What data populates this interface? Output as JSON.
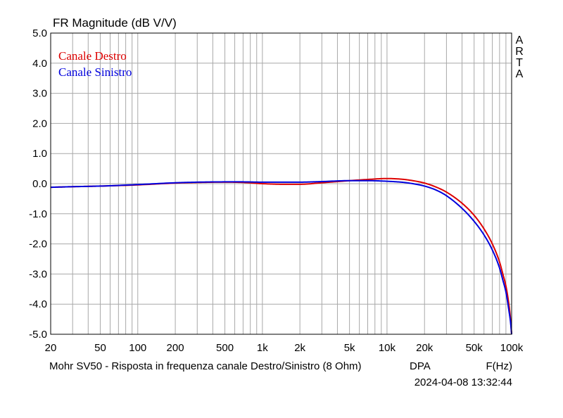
{
  "chart_data": {
    "type": "line",
    "title": "FR Magnitude (dB V/V)",
    "xlabel": "F(Hz)",
    "x_scale": "log",
    "xlim": [
      20,
      100000
    ],
    "ylim": [
      -5.0,
      5.0
    ],
    "grid": true,
    "legend_position": "top-left",
    "x_ticks": [
      {
        "value": 20,
        "label": "20"
      },
      {
        "value": 50,
        "label": "50"
      },
      {
        "value": 100,
        "label": "100"
      },
      {
        "value": 200,
        "label": "200"
      },
      {
        "value": 500,
        "label": "500"
      },
      {
        "value": 1000,
        "label": "1k"
      },
      {
        "value": 2000,
        "label": "2k"
      },
      {
        "value": 5000,
        "label": "5k"
      },
      {
        "value": 10000,
        "label": "10k"
      },
      {
        "value": 20000,
        "label": "20k"
      },
      {
        "value": 50000,
        "label": "50k"
      },
      {
        "value": 100000,
        "label": "100k"
      }
    ],
    "y_ticks": [
      {
        "value": 5,
        "label": "5.0"
      },
      {
        "value": 4,
        "label": "4.0"
      },
      {
        "value": 3,
        "label": "3.0"
      },
      {
        "value": 2,
        "label": "2.0"
      },
      {
        "value": 1,
        "label": "1.0"
      },
      {
        "value": 0,
        "label": "0.0"
      },
      {
        "value": -1,
        "label": "-1.0"
      },
      {
        "value": -2,
        "label": "-2.0"
      },
      {
        "value": -3,
        "label": "-3.0"
      },
      {
        "value": -4,
        "label": "-4.0"
      },
      {
        "value": -5,
        "label": "-5.0"
      }
    ],
    "series": [
      {
        "name": "Canale Destro",
        "color": "#dd0000",
        "points": [
          [
            20,
            -0.12
          ],
          [
            30,
            -0.1
          ],
          [
            50,
            -0.08
          ],
          [
            100,
            -0.04
          ],
          [
            200,
            0.02
          ],
          [
            300,
            0.04
          ],
          [
            500,
            0.05
          ],
          [
            700,
            0.04
          ],
          [
            1000,
            0.0
          ],
          [
            1500,
            -0.02
          ],
          [
            2000,
            -0.02
          ],
          [
            3000,
            0.03
          ],
          [
            5000,
            0.1
          ],
          [
            7000,
            0.14
          ],
          [
            10000,
            0.17
          ],
          [
            13000,
            0.15
          ],
          [
            15000,
            0.12
          ],
          [
            20000,
            0.02
          ],
          [
            25000,
            -0.12
          ],
          [
            30000,
            -0.28
          ],
          [
            40000,
            -0.65
          ],
          [
            50000,
            -1.05
          ],
          [
            60000,
            -1.5
          ],
          [
            70000,
            -2.0
          ],
          [
            80000,
            -2.6
          ],
          [
            85000,
            -3.0
          ],
          [
            90000,
            -3.4
          ],
          [
            95000,
            -4.0
          ],
          [
            98000,
            -4.5
          ],
          [
            100000,
            -5.0
          ]
        ]
      },
      {
        "name": "Canale Sinistro",
        "color": "#0000dd",
        "points": [
          [
            20,
            -0.12
          ],
          [
            30,
            -0.1
          ],
          [
            50,
            -0.08
          ],
          [
            100,
            -0.03
          ],
          [
            200,
            0.03
          ],
          [
            300,
            0.05
          ],
          [
            500,
            0.06
          ],
          [
            700,
            0.06
          ],
          [
            1000,
            0.05
          ],
          [
            1500,
            0.05
          ],
          [
            2000,
            0.05
          ],
          [
            3000,
            0.07
          ],
          [
            5000,
            0.1
          ],
          [
            7000,
            0.1
          ],
          [
            10000,
            0.08
          ],
          [
            13000,
            0.05
          ],
          [
            15000,
            0.02
          ],
          [
            20000,
            -0.08
          ],
          [
            25000,
            -0.22
          ],
          [
            30000,
            -0.4
          ],
          [
            40000,
            -0.82
          ],
          [
            50000,
            -1.25
          ],
          [
            60000,
            -1.7
          ],
          [
            70000,
            -2.2
          ],
          [
            80000,
            -2.8
          ],
          [
            85000,
            -3.2
          ],
          [
            90000,
            -3.6
          ],
          [
            95000,
            -4.2
          ],
          [
            98000,
            -4.6
          ],
          [
            100000,
            -5.0
          ]
        ]
      }
    ],
    "side_label": [
      "A",
      "R",
      "T",
      "A"
    ],
    "footer": {
      "description": "Mohr SV50 - Risposta in frequenza canale Destro/Sinistro (8 Ohm)",
      "mode": "DPA",
      "axis_unit": "F(Hz)",
      "datetime": "2024-04-08  13:32:44"
    }
  }
}
